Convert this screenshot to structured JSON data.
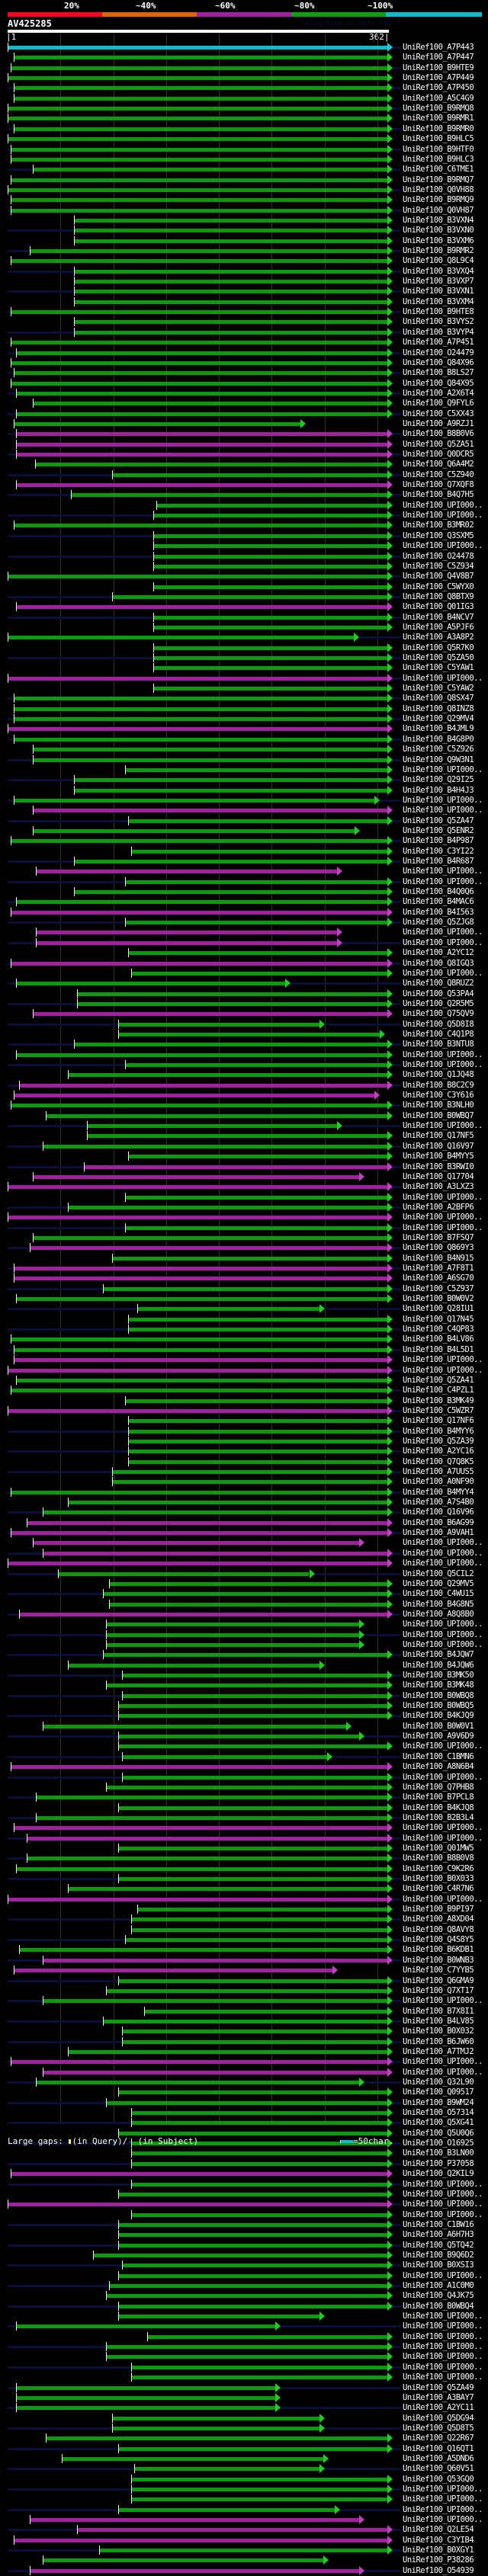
{
  "scale": {
    "labels": [
      "20%",
      "~40%",
      "~60%",
      "~80%",
      "~100%"
    ],
    "colors": [
      "#ff0022",
      "#dd6600",
      "#a020a0",
      "#11a011",
      "#11bbcc"
    ]
  },
  "query": {
    "name": "AV425285",
    "watermark": "AlignView.en Beta rel.7",
    "start": "1",
    "end": "362",
    "length": 362
  },
  "footer": {
    "large_gaps_label": "Large gaps:",
    "in_query": "(in Query)/",
    "dash": "-",
    "in_subject": " (in Subject)",
    "scale_note": "=50char."
  },
  "rows": [
    [
      "UniRef100_A7P443",
      "cyan",
      1,
      362
    ],
    [
      "UniRef100_A7P447",
      "green",
      7,
      362
    ],
    [
      "UniRef100_B9HTE9",
      "green",
      4,
      362
    ],
    [
      "UniRef100_A7P449",
      "green",
      1,
      362
    ],
    [
      "UniRef100_A7P450",
      "green",
      7,
      362
    ],
    [
      "UniRef100_A5C4G9",
      "green",
      7,
      362
    ],
    [
      "UniRef100_B9RMQ8",
      "green",
      1,
      362
    ],
    [
      "UniRef100_B9RMR1",
      "green",
      1,
      362
    ],
    [
      "UniRef100_B9RMR0",
      "green",
      7,
      362
    ],
    [
      "UniRef100_B9HLC5",
      "green",
      1,
      362
    ],
    [
      "UniRef100_B9HTF0",
      "green",
      4,
      362
    ],
    [
      "UniRef100_B9HLC3",
      "green",
      4,
      362
    ],
    [
      "UniRef100_C6TME1",
      "green",
      25,
      362
    ],
    [
      "UniRef100_B9RMQ7",
      "green",
      4,
      362
    ],
    [
      "UniRef100_Q0VH88",
      "green",
      1,
      362
    ],
    [
      "UniRef100_B9RMQ9",
      "green",
      4,
      362
    ],
    [
      "UniRef100_Q0VH87",
      "green",
      4,
      362
    ],
    [
      "UniRef100_B3VXN4",
      "green",
      64,
      362
    ],
    [
      "UniRef100_B3VXN0",
      "green",
      64,
      362
    ],
    [
      "UniRef100_B3VXM6",
      "green",
      64,
      362
    ],
    [
      "UniRef100_B9RMR2",
      "green",
      22,
      362
    ],
    [
      "UniRef100_Q8L9C4",
      "green",
      4,
      362
    ],
    [
      "UniRef100_B3VXQ4",
      "green",
      64,
      362
    ],
    [
      "UniRef100_B3VXP7",
      "green",
      64,
      362
    ],
    [
      "UniRef100_B3VXN1",
      "green",
      64,
      362
    ],
    [
      "UniRef100_B3VXM4",
      "green",
      64,
      362
    ],
    [
      "UniRef100_B9HTE8",
      "green",
      4,
      362
    ],
    [
      "UniRef100_B3VYS2",
      "green",
      64,
      362
    ],
    [
      "UniRef100_B3VYP4",
      "green",
      64,
      362
    ],
    [
      "UniRef100_A7P451",
      "green",
      4,
      362
    ],
    [
      "UniRef100_O24479",
      "green",
      9,
      362
    ],
    [
      "UniRef100_Q84X96",
      "green",
      4,
      362
    ],
    [
      "UniRef100_B8LS27",
      "green",
      7,
      362
    ],
    [
      "UniRef100_Q84X95",
      "green",
      4,
      362
    ],
    [
      "UniRef100_A2X6T4",
      "green",
      9,
      362
    ],
    [
      "UniRef100_Q9FYL6",
      "green",
      25,
      362
    ],
    [
      "UniRef100_C5XX43",
      "green",
      9,
      362
    ],
    [
      "UniRef100_A9RZJ1",
      "green",
      7,
      280
    ],
    [
      "UniRef100_B8B0V6",
      "magenta",
      9,
      362
    ],
    [
      "UniRef100_Q5ZA51",
      "magenta",
      9,
      362
    ],
    [
      "UniRef100_Q0DCR5",
      "magenta",
      9,
      362
    ],
    [
      "UniRef100_Q6A4M2",
      "green",
      27,
      362
    ],
    [
      "UniRef100_C5Z940",
      "green",
      100,
      362
    ],
    [
      "UniRef100_Q7XQF8",
      "magenta",
      9,
      362
    ],
    [
      "UniRef100_B4Q7H5",
      "green",
      61,
      362
    ],
    [
      "UniRef100_UPI000..",
      "green",
      142,
      362
    ],
    [
      "UniRef100_UPI000..",
      "green",
      139,
      362
    ],
    [
      "UniRef100_B3MR02",
      "green",
      7,
      362
    ],
    [
      "UniRef100_Q3SXM5",
      "green",
      139,
      362
    ],
    [
      "UniRef100_UPI000..",
      "green",
      139,
      362
    ],
    [
      "UniRef100_O24478",
      "green",
      139,
      362
    ],
    [
      "UniRef100_C5Z934",
      "green",
      139,
      362
    ],
    [
      "UniRef100_Q4V8B7",
      "green",
      1,
      362
    ],
    [
      "UniRef100_C5WYX0",
      "green",
      139,
      362
    ],
    [
      "UniRef100_Q8BTX9",
      "green",
      100,
      362
    ],
    [
      "UniRef100_Q01IG3",
      "magenta",
      9,
      362
    ],
    [
      "UniRef100_B4NCV7",
      "green",
      139,
      362
    ],
    [
      "UniRef100_A5PJF6",
      "green",
      139,
      362
    ],
    [
      "UniRef100_A3A8P2",
      "green",
      1,
      330
    ],
    [
      "UniRef100_Q5R7K0",
      "green",
      139,
      362
    ],
    [
      "UniRef100_Q5ZA50",
      "green",
      139,
      362
    ],
    [
      "UniRef100_C5YAW1",
      "green",
      139,
      362
    ],
    [
      "UniRef100_UPI000..",
      "magenta",
      1,
      362
    ],
    [
      "UniRef100_C5YAW2",
      "green",
      139,
      362
    ],
    [
      "UniRef100_Q8SX47",
      "green",
      7,
      362
    ],
    [
      "UniRef100_Q8INZ8",
      "green",
      7,
      362
    ],
    [
      "UniRef100_Q29MV4",
      "green",
      7,
      362
    ],
    [
      "UniRef100_B4JML9",
      "magenta",
      1,
      362
    ],
    [
      "UniRef100_B4G8P0",
      "green",
      7,
      362
    ],
    [
      "UniRef100_C5Z926",
      "green",
      25,
      362
    ],
    [
      "UniRef100_Q9W3N1",
      "green",
      25,
      362
    ],
    [
      "UniRef100_UPI000..",
      "green",
      112,
      362
    ],
    [
      "UniRef100_Q29I25",
      "green",
      64,
      362
    ],
    [
      "UniRef100_B4H4J3",
      "green",
      64,
      362
    ],
    [
      "UniRef100_UPI000..",
      "green",
      7,
      350
    ],
    [
      "UniRef100_UPI000..",
      "magenta",
      25,
      362
    ],
    [
      "UniRef100_Q5ZA47",
      "green",
      115,
      362
    ],
    [
      "UniRef100_Q5ENR2",
      "green",
      25,
      331
    ],
    [
      "UniRef100_B4P987",
      "green",
      4,
      362
    ],
    [
      "UniRef100_C3YI22",
      "green",
      118,
      362
    ],
    [
      "UniRef100_B4R687",
      "green",
      64,
      362
    ],
    [
      "UniRef100_UPI000..",
      "magenta",
      28,
      314
    ],
    [
      "UniRef100_UPI000..",
      "green",
      112,
      362
    ],
    [
      "UniRef100_B4Q0Q6",
      "green",
      64,
      362
    ],
    [
      "UniRef100_B4MAC6",
      "green",
      9,
      362
    ],
    [
      "UniRef100_B4I563",
      "magenta",
      4,
      362
    ],
    [
      "UniRef100_Q5ZJG8",
      "green",
      112,
      362
    ],
    [
      "UniRef100_UPI000..",
      "magenta",
      28,
      314
    ],
    [
      "UniRef100_UPI000..",
      "magenta",
      28,
      314
    ],
    [
      "UniRef100_A2YC12",
      "green",
      115,
      362
    ],
    [
      "UniRef100_Q8IGQ3",
      "magenta",
      4,
      362
    ],
    [
      "UniRef100_UPI000..",
      "green",
      118,
      362
    ],
    [
      "UniRef100_Q8RUZ2",
      "green",
      9,
      265
    ],
    [
      "UniRef100_Q53PA4",
      "green",
      67,
      362
    ],
    [
      "UniRef100_Q2R5M5",
      "green",
      67,
      362
    ],
    [
      "UniRef100_Q75QV9",
      "magenta",
      25,
      362
    ],
    [
      "UniRef100_Q5D8I8",
      "green",
      106,
      298
    ],
    [
      "UniRef100_C4Q1P8",
      "green",
      106,
      355
    ],
    [
      "UniRef100_B3NTU8",
      "green",
      64,
      362
    ],
    [
      "UniRef100_UPI000..",
      "green",
      9,
      362
    ],
    [
      "UniRef100_UPI000..",
      "green",
      112,
      362
    ],
    [
      "UniRef100_Q1JQ48",
      "green",
      58,
      362
    ],
    [
      "UniRef100_B8C2C9",
      "magenta",
      12,
      362
    ],
    [
      "UniRef100_C3Y616",
      "magenta",
      7,
      350
    ],
    [
      "UniRef100_B3NLH0",
      "green",
      4,
      362
    ],
    [
      "UniRef100_B0WBQ7",
      "green",
      37,
      362
    ],
    [
      "UniRef100_UPI000..",
      "green",
      76,
      314
    ],
    [
      "UniRef100_Q17NF5",
      "green",
      76,
      362
    ],
    [
      "UniRef100_Q16V97",
      "green",
      34,
      362
    ],
    [
      "UniRef100_B4MYY5",
      "green",
      115,
      362
    ],
    [
      "UniRef100_B3RWI0",
      "magenta",
      73,
      362
    ],
    [
      "UniRef100_Q17704",
      "magenta",
      25,
      335
    ],
    [
      "UniRef100_A3LXZ3",
      "magenta",
      1,
      362
    ],
    [
      "UniRef100_UPI000..",
      "green",
      112,
      362
    ],
    [
      "UniRef100_A2BFP6",
      "green",
      58,
      362
    ],
    [
      "UniRef100_UPI000..",
      "magenta",
      1,
      362
    ],
    [
      "UniRef100_UPI000..",
      "green",
      112,
      362
    ],
    [
      "UniRef100_B7FSQ7",
      "green",
      25,
      362
    ],
    [
      "UniRef100_Q869Y3",
      "magenta",
      22,
      362
    ],
    [
      "UniRef100_B4N915",
      "green",
      100,
      362
    ],
    [
      "UniRef100_A7F8T1",
      "magenta",
      7,
      362
    ],
    [
      "UniRef100_A6SG70",
      "magenta",
      7,
      362
    ],
    [
      "UniRef100_C5Z937",
      "green",
      91,
      362
    ],
    [
      "UniRef100_B0W0V2",
      "green",
      9,
      362
    ],
    [
      "UniRef100_Q28IU1",
      "green",
      124,
      298
    ],
    [
      "UniRef100_Q17N45",
      "green",
      115,
      362
    ],
    [
      "UniRef100_C4QP83",
      "green",
      115,
      362
    ],
    [
      "UniRef100_B4LV86",
      "green",
      4,
      362
    ],
    [
      "UniRef100_B4L5D1",
      "green",
      7,
      362
    ],
    [
      "UniRef100_UPI000..",
      "magenta",
      7,
      362
    ],
    [
      "UniRef100_UPI000..",
      "magenta",
      1,
      362
    ],
    [
      "UniRef100_Q5ZA41",
      "green",
      9,
      362
    ],
    [
      "UniRef100_C4PZL1",
      "green",
      4,
      362
    ],
    [
      "UniRef100_B3MK49",
      "green",
      112,
      362
    ],
    [
      "UniRef100_C5WZR7",
      "magenta",
      1,
      362
    ],
    [
      "UniRef100_Q17NF6",
      "green",
      115,
      362
    ],
    [
      "UniRef100_B4MYY6",
      "green",
      115,
      362
    ],
    [
      "UniRef100_Q5ZA39",
      "green",
      115,
      362
    ],
    [
      "UniRef100_A2YC16",
      "green",
      115,
      362
    ],
    [
      "UniRef100_Q7Q8K5",
      "green",
      115,
      362
    ],
    [
      "UniRef100_A7UUS5",
      "green",
      100,
      362
    ],
    [
      "UniRef100_A0NF90",
      "green",
      100,
      362
    ],
    [
      "UniRef100_B4MYY4",
      "green",
      4,
      362
    ],
    [
      "UniRef100_A7S4B0",
      "green",
      58,
      362
    ],
    [
      "UniRef100_Q16V96",
      "green",
      34,
      362
    ],
    [
      "UniRef100_B6AG99",
      "magenta",
      19,
      362
    ],
    [
      "UniRef100_A9VAH1",
      "magenta",
      4,
      362
    ],
    [
      "UniRef100_UPI000..",
      "magenta",
      25,
      335
    ],
    [
      "UniRef100_UPI000..",
      "magenta",
      34,
      362
    ],
    [
      "UniRef100_UPI000..",
      "magenta",
      1,
      362
    ],
    [
      "UniRef100_Q5CIL2",
      "green",
      49,
      288
    ],
    [
      "UniRef100_Q29MV5",
      "green",
      97,
      362
    ],
    [
      "UniRef100_C4WU15",
      "green",
      91,
      362
    ],
    [
      "UniRef100_B4G8N5",
      "green",
      97,
      362
    ],
    [
      "UniRef100_A8Q8B0",
      "magenta",
      12,
      362
    ],
    [
      "UniRef100_UPI000..",
      "green",
      94,
      335
    ],
    [
      "UniRef100_UPI000..",
      "green",
      94,
      335
    ],
    [
      "UniRef100_UPI000..",
      "green",
      94,
      335
    ],
    [
      "UniRef100_B4JQW7",
      "green",
      91,
      362
    ],
    [
      "UniRef100_B4JQW6",
      "green",
      58,
      298
    ],
    [
      "UniRef100_B3MK50",
      "green",
      109,
      362
    ],
    [
      "UniRef100_B3MK48",
      "green",
      94,
      362
    ],
    [
      "UniRef100_B0WBQ8",
      "green",
      109,
      362
    ],
    [
      "UniRef100_B0WBQ5",
      "green",
      106,
      362
    ],
    [
      "UniRef100_B4KJQ9",
      "green",
      106,
      362
    ],
    [
      "UniRef100_B0W0V1",
      "green",
      34,
      323
    ],
    [
      "UniRef100_A9V6D9",
      "green",
      106,
      335
    ],
    [
      "UniRef100_UPI000..",
      "green",
      106,
      362
    ],
    [
      "UniRef100_C1BMN6",
      "green",
      109,
      305
    ],
    [
      "UniRef100_A8N6B4",
      "magenta",
      4,
      362
    ],
    [
      "UniRef100_UPI000..",
      "green",
      109,
      362
    ],
    [
      "UniRef100_Q7PHB8",
      "green",
      94,
      362
    ],
    [
      "UniRef100_B7PCL8",
      "green",
      28,
      362
    ],
    [
      "UniRef100_B4KJQ8",
      "green",
      106,
      362
    ],
    [
      "UniRef100_B2B3L4",
      "green",
      28,
      362
    ],
    [
      "UniRef100_UPI000..",
      "magenta",
      7,
      362
    ],
    [
      "UniRef100_UPI000..",
      "magenta",
      19,
      362
    ],
    [
      "UniRef100_Q01MW5",
      "green",
      106,
      362
    ],
    [
      "UniRef100_B8B0V8",
      "green",
      19,
      362
    ],
    [
      "UniRef100_C9K2R6",
      "green",
      9,
      362
    ],
    [
      "UniRef100_B0X033",
      "green",
      106,
      362
    ],
    [
      "UniRef100_C4R7N6",
      "green",
      58,
      362
    ],
    [
      "UniRef100_UPI000..",
      "magenta",
      1,
      362
    ],
    [
      "UniRef100_B9PI97",
      "green",
      124,
      362
    ],
    [
      "UniRef100_A8XD04",
      "green",
      118,
      362
    ],
    [
      "UniRef100_Q8AVY8",
      "green",
      118,
      362
    ],
    [
      "UniRef100_Q4S8Y5",
      "green",
      112,
      362
    ],
    [
      "UniRef100_B6KDB1",
      "green",
      12,
      362
    ],
    [
      "UniRef100_B0WNB3",
      "magenta",
      34,
      362
    ],
    [
      "UniRef100_C7YYB5",
      "magenta",
      7,
      310
    ],
    [
      "UniRef100_Q6GMA9",
      "green",
      106,
      362
    ],
    [
      "UniRef100_Q7XT17",
      "green",
      94,
      362
    ],
    [
      "UniRef100_UPI000..",
      "green",
      34,
      362
    ],
    [
      "UniRef100_B7X8I1",
      "green",
      130,
      362
    ],
    [
      "UniRef100_B4LV85",
      "green",
      91,
      362
    ],
    [
      "UniRef100_B0X032",
      "green",
      109,
      362
    ],
    [
      "UniRef100_B6JW60",
      "green",
      109,
      362
    ],
    [
      "UniRef100_A7TMJ2",
      "green",
      58,
      362
    ],
    [
      "UniRef100_UPI000..",
      "magenta",
      4,
      362
    ],
    [
      "UniRef100_UPI000..",
      "magenta",
      34,
      362
    ],
    [
      "UniRef100_Q32L90",
      "green",
      28,
      335
    ],
    [
      "UniRef100_Q09517",
      "green",
      106,
      362
    ],
    [
      "UniRef100_B9WM24",
      "green",
      94,
      362
    ],
    [
      "UniRef100_O57314",
      "green",
      118,
      362
    ],
    [
      "UniRef100_Q5XG41",
      "green",
      118,
      362
    ],
    [
      "UniRef100_Q5U0Q6",
      "green",
      106,
      362
    ],
    [
      "UniRef100_O16925",
      "green",
      118,
      362
    ],
    [
      "UniRef100_B3LN00",
      "green",
      118,
      362
    ],
    [
      "UniRef100_P37058",
      "green",
      118,
      362
    ],
    [
      "UniRef100_Q2KIL9",
      "magenta",
      4,
      362
    ],
    [
      "UniRef100_UPI000..",
      "green",
      118,
      362
    ],
    [
      "UniRef100_UPI000..",
      "green",
      106,
      362
    ],
    [
      "UniRef100_UPI000..",
      "magenta",
      1,
      362
    ],
    [
      "UniRef100_UPI000..",
      "green",
      118,
      362
    ],
    [
      "UniRef100_C1BW16",
      "green",
      106,
      362
    ],
    [
      "UniRef100_A6H7H3",
      "green",
      106,
      362
    ],
    [
      "UniRef100_Q5TQ42",
      "green",
      106,
      362
    ],
    [
      "UniRef100_B9Q6D2",
      "green",
      82,
      362
    ],
    [
      "UniRef100_B0XSI3",
      "green",
      109,
      362
    ],
    [
      "UniRef100_UPI000..",
      "green",
      106,
      362
    ],
    [
      "UniRef100_A1C0M0",
      "green",
      97,
      362
    ],
    [
      "UniRef100_Q4JK75",
      "green",
      94,
      362
    ],
    [
      "UniRef100_B0WBQ4",
      "green",
      106,
      362
    ],
    [
      "UniRef100_UPI000..",
      "green",
      106,
      298
    ],
    [
      "UniRef100_UPI000..",
      "green",
      9,
      256
    ],
    [
      "UniRef100_UPI000..",
      "green",
      133,
      362
    ],
    [
      "UniRef100_UPI000..",
      "green",
      94,
      362
    ],
    [
      "UniRef100_UPI000..",
      "green",
      94,
      362
    ],
    [
      "UniRef100_UPI000..",
      "green",
      118,
      362
    ],
    [
      "UniRef100_UPI000..",
      "green",
      118,
      362
    ],
    [
      "UniRef100_Q5ZA49",
      "green",
      9,
      256
    ],
    [
      "UniRef100_A3BAY7",
      "green",
      9,
      256
    ],
    [
      "UniRef100_A2YC11",
      "green",
      9,
      256
    ],
    [
      "UniRef100_Q5DG94",
      "green",
      100,
      298
    ],
    [
      "UniRef100_Q5D8T5",
      "green",
      100,
      298
    ],
    [
      "UniRef100_Q22R67",
      "green",
      37,
      362
    ],
    [
      "UniRef100_Q16QT1",
      "green",
      106,
      362
    ],
    [
      "UniRef100_A5DND6",
      "green",
      52,
      301
    ],
    [
      "UniRef100_Q60V51",
      "green",
      121,
      298
    ],
    [
      "UniRef100_Q53GQ0",
      "green",
      118,
      362
    ],
    [
      "UniRef100_UPI000..",
      "green",
      118,
      362
    ],
    [
      "UniRef100_UPI000..",
      "green",
      118,
      362
    ],
    [
      "UniRef100_UPI000..",
      "green",
      106,
      312
    ],
    [
      "UniRef100_UPI000..",
      "magenta",
      22,
      335
    ],
    [
      "UniRef100_Q2LE54",
      "magenta",
      67,
      362
    ],
    [
      "UniRef100_C3YIB4",
      "magenta",
      7,
      362
    ],
    [
      "UniRef100_B0XGY1",
      "green",
      88,
      362
    ],
    [
      "UniRef100_P38286",
      "green",
      34,
      301
    ],
    [
      "UniRef100_O54939",
      "magenta",
      22,
      335
    ]
  ]
}
